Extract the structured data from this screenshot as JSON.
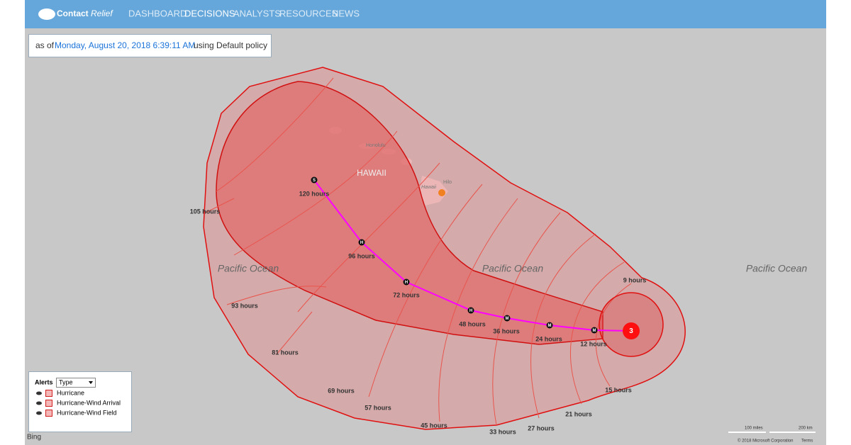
{
  "header": {
    "brand": "Contact",
    "brand_suffix": "Relief",
    "nav": [
      "DASHBOARD",
      "DECISIONS",
      "ANALYSTS",
      "RESOURCES",
      "NEWS"
    ]
  },
  "status": {
    "prefix": "as of",
    "timestamp": "Monday, August 20, 2018 6:39:11 AM",
    "suffix": "using Default policy"
  },
  "map": {
    "places": [
      "Honolulu",
      "HAWAII",
      "Hawaii",
      "Hilo",
      "Pacific Ocean",
      "Pacific Ocean",
      "Pacific Ocean"
    ],
    "track_markers": [
      "S",
      "H",
      "H",
      "H",
      "M",
      "M",
      "M",
      "3"
    ],
    "hour_labels": [
      "120 hours",
      "105 hours",
      "96 hours",
      "93 hours",
      "72 hours",
      "81 hours",
      "48 hours",
      "36 hours",
      "24 hours",
      "12 hours",
      "9 hours",
      "15 hours",
      "21 hours",
      "27 hours",
      "33 hours",
      "45 hours",
      "57 hours",
      "69 hours"
    ]
  },
  "legend": {
    "title": "Alerts",
    "filter": "Type",
    "items": [
      "Hurricane",
      "Hurricane-Wind Arrival",
      "Hurricane-Wind Field"
    ]
  },
  "footer": {
    "provider": "Bing",
    "scale_miles": "100 miles",
    "scale_km": "200 km",
    "copyright": "© 2018 Microsoft Corporation",
    "terms": "Terms"
  }
}
